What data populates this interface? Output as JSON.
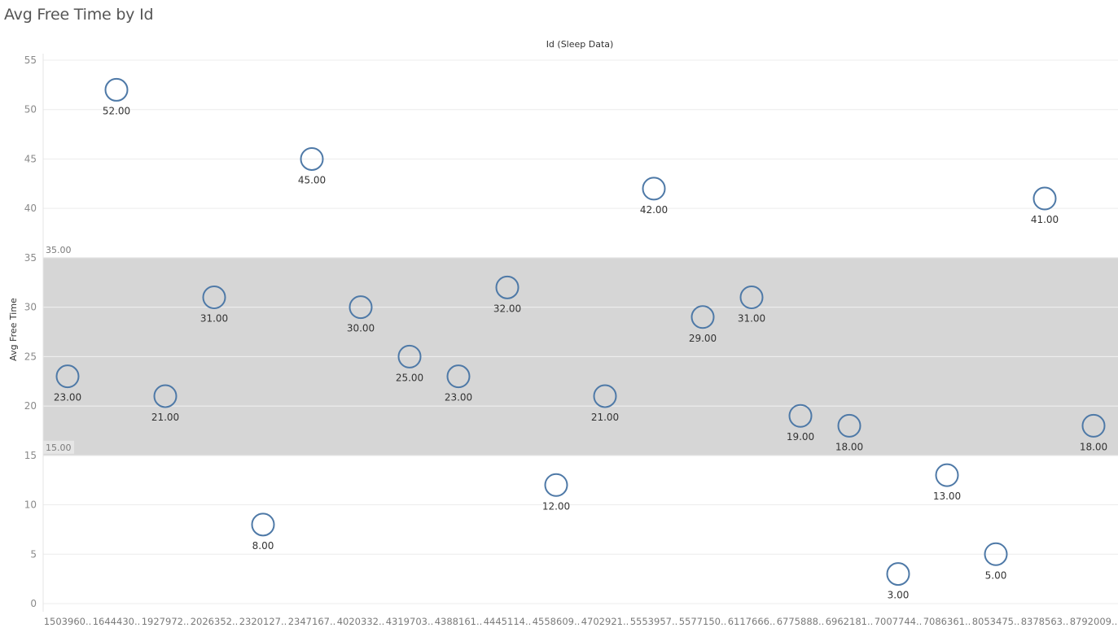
{
  "title": "Avg Free Time by Id",
  "colors": {
    "mark": "#4e79a7",
    "band": "#d6d6d6",
    "grid": "#ececec"
  },
  "chart_data": {
    "type": "scatter",
    "title": "Avg Free Time by Id",
    "xlabel": "Id (Sleep Data)",
    "ylabel": "Avg Free Time",
    "ylim": [
      0,
      55
    ],
    "yticks": [
      "0",
      "5",
      "10",
      "15",
      "20",
      "25",
      "30",
      "35",
      "40",
      "45",
      "50",
      "55"
    ],
    "grid": true,
    "categories": [
      "1503960..",
      "1644430..",
      "1927972..",
      "2026352..",
      "2320127..",
      "2347167..",
      "4020332..",
      "4319703..",
      "4388161..",
      "4445114..",
      "4558609..",
      "4702921..",
      "5553957..",
      "5577150..",
      "6117666..",
      "6775888..",
      "6962181..",
      "7007744..",
      "7086361..",
      "8053475..",
      "8378563..",
      "8792009.."
    ],
    "values": [
      23,
      52,
      21,
      31,
      8,
      45,
      30,
      25,
      23,
      32,
      12,
      21,
      42,
      29,
      31,
      19,
      18,
      3,
      13,
      5,
      41,
      18
    ],
    "value_labels": [
      "23.00",
      "52.00",
      "21.00",
      "31.00",
      "8.00",
      "45.00",
      "30.00",
      "25.00",
      "23.00",
      "32.00",
      "12.00",
      "21.00",
      "42.00",
      "29.00",
      "31.00",
      "19.00",
      "18.00",
      "3.00",
      "13.00",
      "5.00",
      "41.00",
      "18.00"
    ],
    "reference_band": {
      "from": 15,
      "to": 35,
      "label_from": "15.00",
      "label_to": "35.00"
    }
  }
}
